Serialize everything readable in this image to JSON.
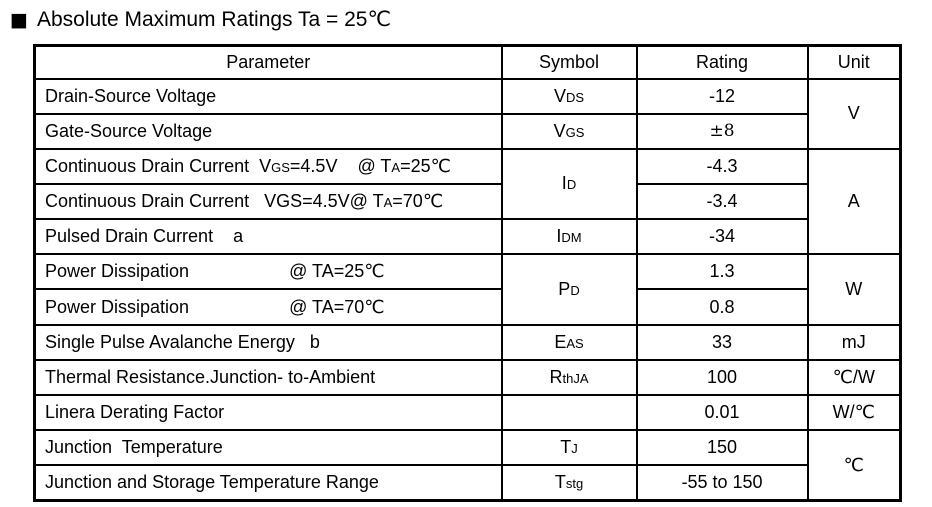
{
  "title": {
    "bullet": "■",
    "text": "Absolute Maximum Ratings Ta = 25℃"
  },
  "table": {
    "headers": [
      "Parameter",
      "Symbol",
      "Rating",
      "Unit"
    ],
    "rows": [
      {
        "parameter": [
          {
            "t": "Drain-Source Voltage"
          }
        ],
        "symbol": [
          {
            "t": "V"
          },
          {
            "t": "DS",
            "sub": true
          }
        ],
        "rating": "-12",
        "unit": "V"
      },
      {
        "parameter": [
          {
            "t": "Gate-Source Voltage"
          }
        ],
        "symbol": [
          {
            "t": "V"
          },
          {
            "t": "GS",
            "sub": true
          }
        ],
        "rating": "±8"
      },
      {
        "parameter": [
          {
            "t": "Continuous Drain Current  V"
          },
          {
            "t": "GS",
            "sub": true
          },
          {
            "t": "=4.5V    @ T"
          },
          {
            "t": "A",
            "sub": true
          },
          {
            "t": "=25℃"
          }
        ],
        "symbol": [
          {
            "t": "I"
          },
          {
            "t": "D",
            "sub": true
          }
        ],
        "rating": "-4.3",
        "unit": "A"
      },
      {
        "parameter": [
          {
            "t": "Continuous Drain Current   VGS=4.5V@ T"
          },
          {
            "t": "A",
            "sub": true
          },
          {
            "t": "=70℃"
          }
        ],
        "rating": "-3.4"
      },
      {
        "parameter": [
          {
            "t": "Pulsed Drain Current    a"
          }
        ],
        "symbol": [
          {
            "t": "I"
          },
          {
            "t": "DM",
            "sub": true
          }
        ],
        "rating": "-34"
      },
      {
        "parameter": [
          {
            "t": "Power Dissipation                    @ TA=25℃"
          }
        ],
        "symbol": [
          {
            "t": "P"
          },
          {
            "t": "D",
            "sub": true
          }
        ],
        "rating": "1.3",
        "unit": "W"
      },
      {
        "parameter": [
          {
            "t": "Power Dissipation                    @ TA=70℃"
          }
        ],
        "rating": "0.8"
      },
      {
        "parameter": [
          {
            "t": "Single Pulse Avalanche Energy   b"
          }
        ],
        "symbol": [
          {
            "t": "E"
          },
          {
            "t": "AS",
            "sub": true
          }
        ],
        "rating": "33",
        "unit": "mJ"
      },
      {
        "parameter": [
          {
            "t": "Thermal Resistance.Junction- to-Ambient"
          }
        ],
        "symbol": [
          {
            "t": "R"
          },
          {
            "t": "thJA",
            "sub": true
          }
        ],
        "rating": "100",
        "unit": "℃/W"
      },
      {
        "parameter": [
          {
            "t": "Linera Derating Factor"
          }
        ],
        "symbol": [],
        "rating": "0.01",
        "unit": "W/℃"
      },
      {
        "parameter": [
          {
            "t": "Junction  Temperature"
          }
        ],
        "symbol": [
          {
            "t": "T"
          },
          {
            "t": "J",
            "sub": true
          }
        ],
        "rating": "150",
        "unit": "℃"
      },
      {
        "parameter": [
          {
            "t": "Junction and Storage Temperature Range"
          }
        ],
        "symbol": [
          {
            "t": "T"
          },
          {
            "t": "stg",
            "sub": true
          }
        ],
        "rating": "-55 to 150"
      }
    ]
  }
}
